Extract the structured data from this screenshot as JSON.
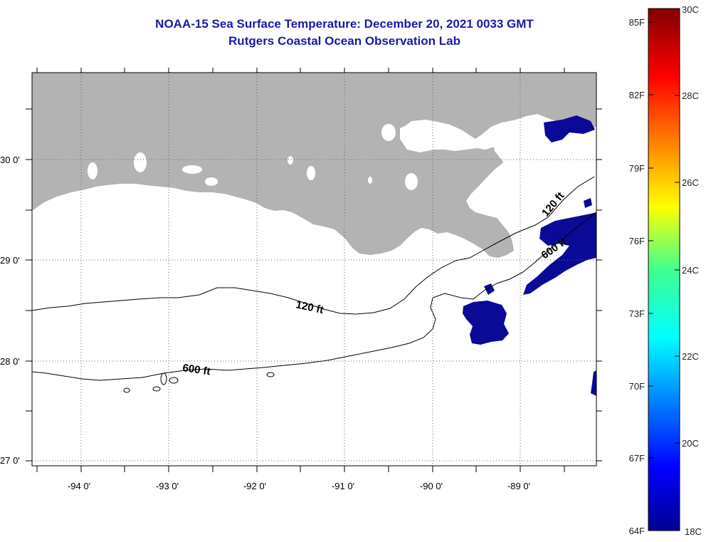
{
  "title": {
    "line1": "NOAA-15 Sea Surface Temperature:  December 20, 2021 0033 GMT",
    "line2": "Rutgers Coastal Ocean Observation Lab"
  },
  "axes": {
    "longitude_labels": [
      "-94 0'",
      "-93 0'",
      "-92 0'",
      "-91 0'",
      "-90 0'",
      "-89 0'"
    ],
    "latitude_labels": [
      "30 0'",
      "29 0'",
      "28 0'",
      "27 0'"
    ]
  },
  "contour_labels": {
    "c120_west": "120 ft",
    "c600_west": "600 ft",
    "c120_east": "120 ft",
    "c600_east": "600 ft"
  },
  "colorbar": {
    "fahrenheit": [
      "85F",
      "82F",
      "79F",
      "76F",
      "73F",
      "70F",
      "67F",
      "64F"
    ],
    "celsius": [
      "30C",
      "28C",
      "26C",
      "24C",
      "22C",
      "20C",
      "18C"
    ],
    "min_c": 18,
    "max_c": 30
  },
  "colors": {
    "land": "#b3b3b3",
    "ocean": "#ffffff",
    "cold_water": "#0a0a96",
    "title": "#1a1aa6"
  }
}
